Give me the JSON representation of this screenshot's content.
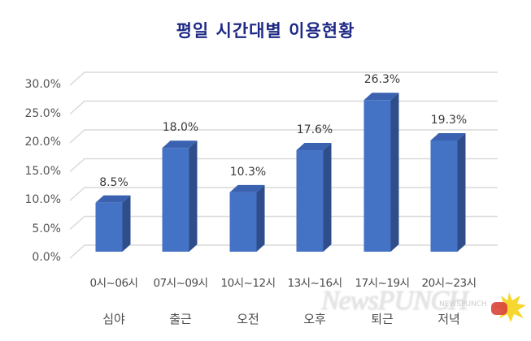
{
  "title": "평일 시간대별 이용현황",
  "colors": {
    "bar_front": "#4472c4",
    "bar_side": "#2e4d8a",
    "bar_top": "#3a62b0",
    "grid": "#d9d9d9",
    "title": "#1f2a86"
  },
  "y_axis": {
    "ticks": [
      "30.0%",
      "25.0%",
      "20.0%",
      "15.0%",
      "10.0%",
      "5.0%",
      "0.0%"
    ]
  },
  "bars": [
    {
      "range": "0시~06시",
      "period": "심야",
      "value": 8.5,
      "label": "8.5%"
    },
    {
      "range": "07시~09시",
      "period": "출근",
      "value": 18.0,
      "label": "18.0%"
    },
    {
      "range": "10시~12시",
      "period": "오전",
      "value": 10.3,
      "label": "10.3%"
    },
    {
      "range": "13시~16시",
      "period": "오후",
      "value": 17.6,
      "label": "17.6%"
    },
    {
      "range": "17시~19시",
      "period": "퇴근",
      "value": 26.3,
      "label": "26.3%"
    },
    {
      "range": "20시~23시",
      "period": "저녁",
      "value": 19.3,
      "label": "19.3%"
    }
  ],
  "watermark": {
    "main": "NewsPUNCH",
    "small": "NEWSPUNCH"
  },
  "chart_data": {
    "type": "bar",
    "title": "평일 시간대별 이용현황",
    "categories": [
      "0시~06시 심야",
      "07시~09시 출근",
      "10시~12시 오전",
      "13시~16시 오후",
      "17시~19시 퇴근",
      "20시~23시 저녁"
    ],
    "values": [
      8.5,
      18.0,
      10.3,
      17.6,
      26.3,
      19.3
    ],
    "xlabel": "",
    "ylabel": "",
    "ylim": [
      0,
      30
    ],
    "y_tick_step": 5,
    "y_format": "percent",
    "grid": true,
    "style": "3d-column",
    "legend": null
  }
}
